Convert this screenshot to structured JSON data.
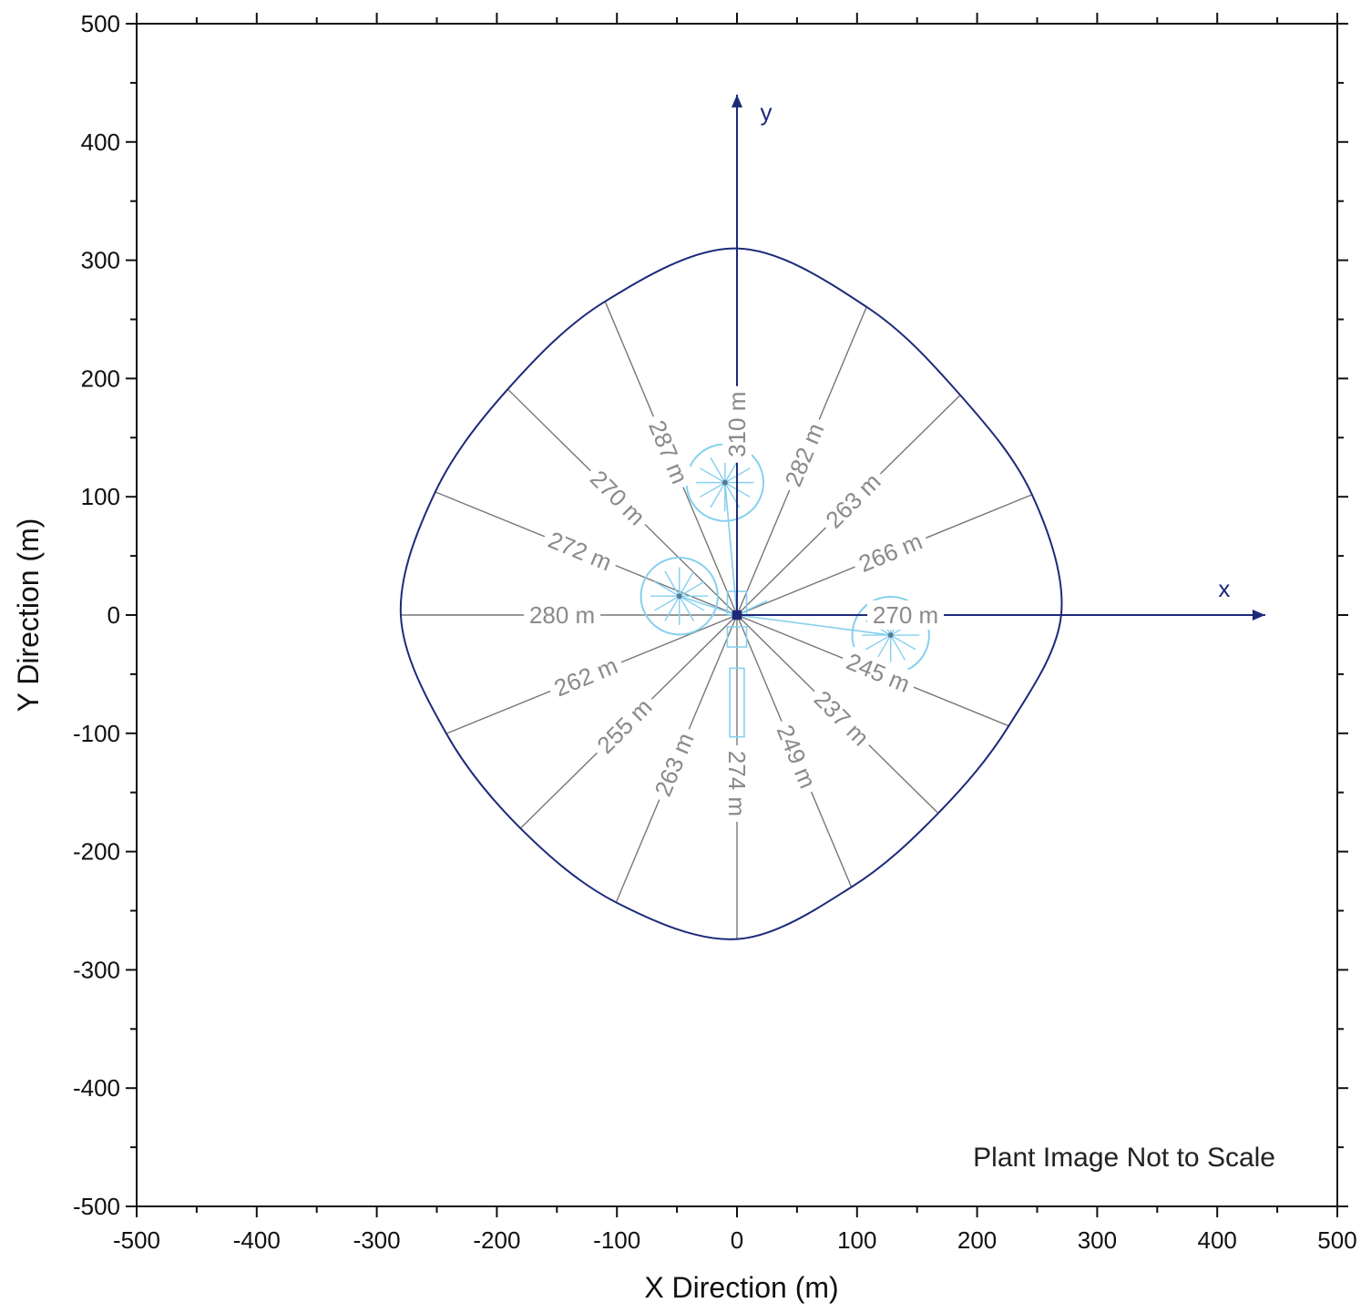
{
  "chart_data": {
    "type": "line",
    "xlabel": "X Direction (m)",
    "ylabel": "Y Direction (m)",
    "xlim": [
      -500,
      500
    ],
    "ylim": [
      -500,
      500
    ],
    "major_ticks": [
      -500,
      -400,
      -300,
      -200,
      -100,
      0,
      100,
      200,
      300,
      400,
      500
    ],
    "x_tick_labels": [
      "-500",
      "-400",
      "-300",
      "-200",
      "-100",
      "0",
      "100",
      "200",
      "300",
      "400",
      "500"
    ],
    "y_tick_labels": [
      "-500",
      "-400",
      "-300",
      "-200",
      "-100",
      "0",
      "100",
      "200",
      "300",
      "400",
      "500"
    ],
    "minor_tick_step": 50,
    "grid": false,
    "annotation": "Plant Image Not to Scale",
    "local_axes": {
      "x_label": "x",
      "y_label": "y",
      "x_end": 440,
      "y_end": 440
    },
    "radials": [
      {
        "angle_deg": 90,
        "length": 310,
        "label": "310 m"
      },
      {
        "angle_deg": 67.5,
        "length": 282,
        "label": "282 m"
      },
      {
        "angle_deg": 45,
        "length": 263,
        "label": "263 m"
      },
      {
        "angle_deg": 22.5,
        "length": 266,
        "label": "266 m"
      },
      {
        "angle_deg": 0,
        "length": 270,
        "label": "270 m"
      },
      {
        "angle_deg": -22.5,
        "length": 245,
        "label": "245 m"
      },
      {
        "angle_deg": -45,
        "length": 237,
        "label": "237 m"
      },
      {
        "angle_deg": -67.5,
        "length": 249,
        "label": "249 m"
      },
      {
        "angle_deg": -90,
        "length": 274,
        "label": "274 m"
      },
      {
        "angle_deg": -112.5,
        "length": 263,
        "label": "263 m"
      },
      {
        "angle_deg": -135,
        "length": 255,
        "label": "255 m"
      },
      {
        "angle_deg": -157.5,
        "length": 262,
        "label": "262 m"
      },
      {
        "angle_deg": 180,
        "length": 280,
        "label": "280 m"
      },
      {
        "angle_deg": 157.5,
        "length": 272,
        "label": "272 m"
      },
      {
        "angle_deg": 135,
        "length": 270,
        "label": "270 m"
      },
      {
        "angle_deg": 112.5,
        "length": 287,
        "label": "287 m"
      }
    ],
    "plant": {
      "color": "#86d0ee",
      "units": [
        {
          "cx": -10,
          "cy": 112,
          "r": 32
        },
        {
          "cx": -48,
          "cy": 16,
          "r": 32
        },
        {
          "cx": 128,
          "cy": -17,
          "r": 32
        }
      ]
    },
    "colors": {
      "boundary": "#1d2a7a",
      "local_axes": "#1d2a7a",
      "radials": "#777777",
      "frame": "#111111"
    }
  }
}
